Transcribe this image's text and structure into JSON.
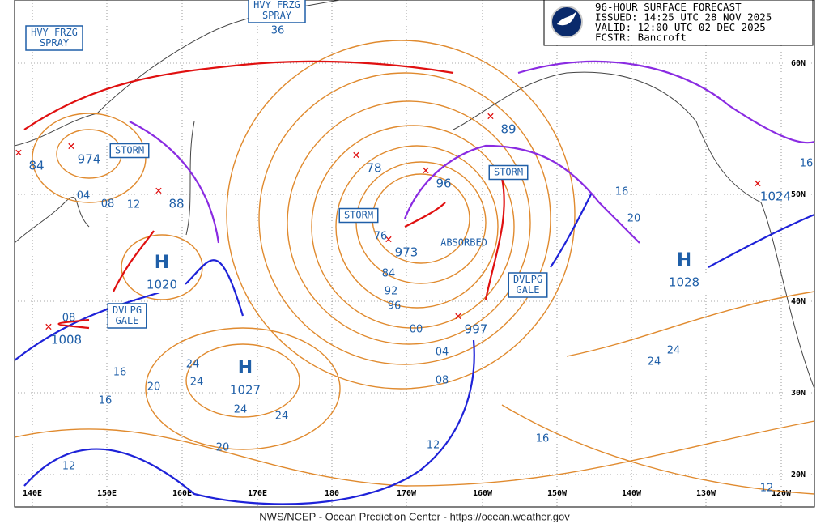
{
  "header": {
    "lines": [
      "96-HOUR SURFACE FORECAST",
      "ISSUED: 14:25 UTC 28 NOV 2025",
      "VALID:  12:00 UTC 02 DEC 2025",
      "FCSTR:  Bancroft"
    ]
  },
  "highs": [
    {
      "symbol": "H",
      "pressure": "1020"
    },
    {
      "symbol": "H",
      "pressure": "1027"
    },
    {
      "symbol": "H",
      "pressure": "1028"
    }
  ],
  "lows": [
    "974",
    "84",
    "88",
    "78",
    "96",
    "973",
    "997",
    "89",
    "1008",
    "1024"
  ],
  "boxes": [
    {
      "lines": [
        "HVY FRZG",
        "SPRAY"
      ]
    },
    {
      "lines": [
        "HVY FRZG",
        "SPRAY"
      ]
    },
    {
      "lines": [
        "STORM"
      ]
    },
    {
      "lines": [
        "STORM"
      ]
    },
    {
      "lines": [
        "STORM"
      ]
    },
    {
      "lines": [
        "DVLPG",
        "GALE"
      ]
    },
    {
      "lines": [
        "DVLPG",
        "GALE"
      ]
    }
  ],
  "notes": [
    "ABSORBED"
  ],
  "isobar_labels": [
    "36",
    "08",
    "12",
    "04",
    "76",
    "84",
    "92",
    "96",
    "00",
    "04",
    "08",
    "12",
    "16",
    "16",
    "20",
    "24",
    "24",
    "24",
    "24",
    "20",
    "12",
    "16",
    "24",
    "24",
    "16",
    "20",
    "16",
    "12",
    "08"
  ],
  "longitudes": [
    "140E",
    "150E",
    "160E",
    "170E",
    "180",
    "170W",
    "160W",
    "150W",
    "140W",
    "130W",
    "120W"
  ],
  "latitudes": [
    "60N",
    "50N",
    "40N",
    "30N",
    "20N"
  ],
  "footer": "NWS/NCEP - Ocean Prediction Center - https://ocean.weather.gov"
}
